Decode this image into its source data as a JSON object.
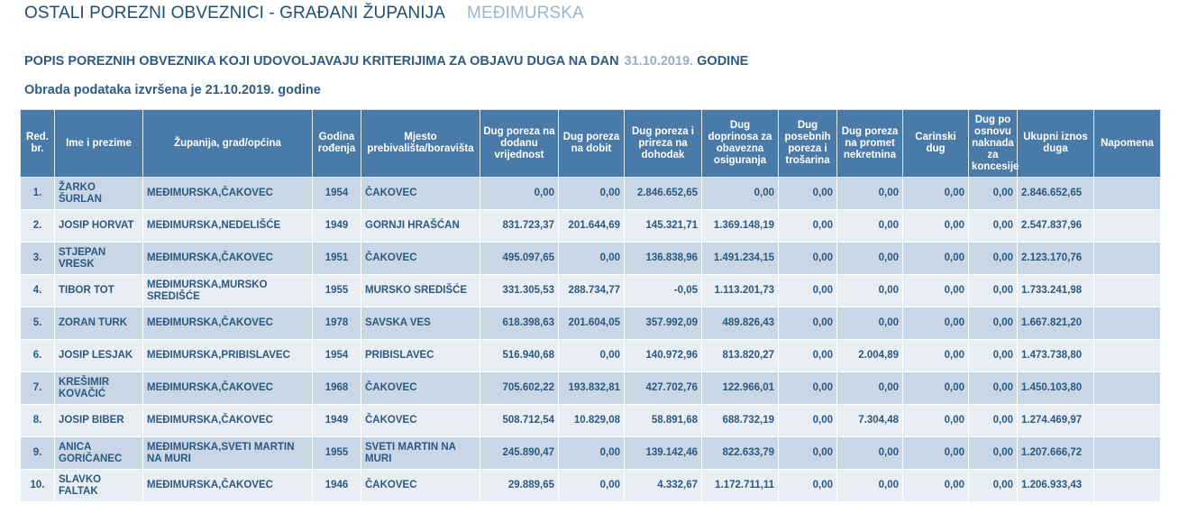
{
  "header": {
    "title": "OSTALI POREZNI OBVEZNICI - GRAĐANI ŽUPANIJA",
    "county": "MEĐIMURSKA",
    "subtitle_prefix": "POPIS POREZNIH OBVEZNIKA KOJI UDOVOLJAVAJU KRITERIJIMA ZA OBJAVU DUGA NA DAN",
    "subtitle_date": "31.10.2019.",
    "subtitle_suffix": "GODINE",
    "processed": "Obrada podataka izvršena je 21.10.2019. godine"
  },
  "columns": [
    "Red. br.",
    "Ime i prezime",
    "Županija, grad/općina",
    "Godina rođenja",
    "Mjesto prebivališta/boravišta",
    "Dug poreza na dodanu vrijednost",
    "Dug poreza na dobit",
    "Dug poreza i prireza na dohodak",
    "Dug doprinosa za obavezna osiguranja",
    "Dug posebnih poreza i trošarina",
    "Dug poreza na promet nekretnina",
    "Carinski dug",
    "Dug po osnovu naknada za koncesije",
    "Ukupni iznos duga",
    "Napomena"
  ],
  "rows": [
    {
      "no": "1.",
      "name": "ŽARKO ŠURLAN",
      "county": "MEĐIMURSKA,ČAKOVEC",
      "year": "1954",
      "residence": "ČAKOVEC",
      "pdv": "0,00",
      "dobit": "0,00",
      "dohodak": "2.846.652,65",
      "doprinosi": "0,00",
      "posebni": "0,00",
      "promet": "0,00",
      "carinski": "0,00",
      "koncesije": "0,00",
      "ukupno": "2.846.652,65",
      "napomena": ""
    },
    {
      "no": "2.",
      "name": "JOSIP HORVAT",
      "county": "MEĐIMURSKA,NEDELIŠĆE",
      "year": "1949",
      "residence": "GORNJI HRAŠĆAN",
      "pdv": "831.723,37",
      "dobit": "201.644,69",
      "dohodak": "145.321,71",
      "doprinosi": "1.369.148,19",
      "posebni": "0,00",
      "promet": "0,00",
      "carinski": "0,00",
      "koncesije": "0,00",
      "ukupno": "2.547.837,96",
      "napomena": ""
    },
    {
      "no": "3.",
      "name": "STJEPAN VRESK",
      "county": "MEĐIMURSKA,ČAKOVEC",
      "year": "1951",
      "residence": "ČAKOVEC",
      "pdv": "495.097,65",
      "dobit": "0,00",
      "dohodak": "136.838,96",
      "doprinosi": "1.491.234,15",
      "posebni": "0,00",
      "promet": "0,00",
      "carinski": "0,00",
      "koncesije": "0,00",
      "ukupno": "2.123.170,76",
      "napomena": ""
    },
    {
      "no": "4.",
      "name": "TIBOR TOT",
      "county": "MEĐIMURSKA,MURSKO SREDIŠĆE",
      "year": "1955",
      "residence": "MURSKO SREDIŠĆE",
      "pdv": "331.305,53",
      "dobit": "288.734,77",
      "dohodak": "-0,05",
      "doprinosi": "1.113.201,73",
      "posebni": "0,00",
      "promet": "0,00",
      "carinski": "0,00",
      "koncesije": "0,00",
      "ukupno": "1.733.241,98",
      "napomena": ""
    },
    {
      "no": "5.",
      "name": "ZORAN TURK",
      "county": "MEĐIMURSKA,ČAKOVEC",
      "year": "1978",
      "residence": "SAVSKA VES",
      "pdv": "618.398,63",
      "dobit": "201.604,05",
      "dohodak": "357.992,09",
      "doprinosi": "489.826,43",
      "posebni": "0,00",
      "promet": "0,00",
      "carinski": "0,00",
      "koncesije": "0,00",
      "ukupno": "1.667.821,20",
      "napomena": ""
    },
    {
      "no": "6.",
      "name": "JOSIP LESJAK",
      "county": "MEĐIMURSKA,PRIBISLAVEC",
      "year": "1954",
      "residence": "PRIBISLAVEC",
      "pdv": "516.940,68",
      "dobit": "0,00",
      "dohodak": "140.972,96",
      "doprinosi": "813.820,27",
      "posebni": "0,00",
      "promet": "2.004,89",
      "carinski": "0,00",
      "koncesije": "0,00",
      "ukupno": "1.473.738,80",
      "napomena": ""
    },
    {
      "no": "7.",
      "name": "KREŠIMIR KOVAČIĆ",
      "county": "MEĐIMURSKA,ČAKOVEC",
      "year": "1968",
      "residence": "ČAKOVEC",
      "pdv": "705.602,22",
      "dobit": "193.832,81",
      "dohodak": "427.702,76",
      "doprinosi": "122.966,01",
      "posebni": "0,00",
      "promet": "0,00",
      "carinski": "0,00",
      "koncesije": "0,00",
      "ukupno": "1.450.103,80",
      "napomena": ""
    },
    {
      "no": "8.",
      "name": "JOSIP BIBER",
      "county": "MEĐIMURSKA,ČAKOVEC",
      "year": "1949",
      "residence": "ČAKOVEC",
      "pdv": "508.712,54",
      "dobit": "10.829,08",
      "dohodak": "58.891,68",
      "doprinosi": "688.732,19",
      "posebni": "0,00",
      "promet": "7.304,48",
      "carinski": "0,00",
      "koncesije": "0,00",
      "ukupno": "1.274.469,97",
      "napomena": ""
    },
    {
      "no": "9.",
      "name": "ANICA GORIČANEC",
      "county": "MEĐIMURSKA,SVETI MARTIN NA MURI",
      "year": "1955",
      "residence": "SVETI MARTIN NA MURI",
      "pdv": "245.890,47",
      "dobit": "0,00",
      "dohodak": "139.142,46",
      "doprinosi": "822.633,79",
      "posebni": "0,00",
      "promet": "0,00",
      "carinski": "0,00",
      "koncesije": "0,00",
      "ukupno": "1.207.666,72",
      "napomena": ""
    },
    {
      "no": "10.",
      "name": "SLAVKO FALTAK",
      "county": "MEĐIMURSKA,ČAKOVEC",
      "year": "1946",
      "residence": "ČAKOVEC",
      "pdv": "29.889,65",
      "dobit": "0,00",
      "dohodak": "4.332,67",
      "doprinosi": "1.172.711,11",
      "posebni": "0,00",
      "promet": "0,00",
      "carinski": "0,00",
      "koncesije": "0,00",
      "ukupno": "1.206.933,43",
      "napomena": ""
    }
  ]
}
